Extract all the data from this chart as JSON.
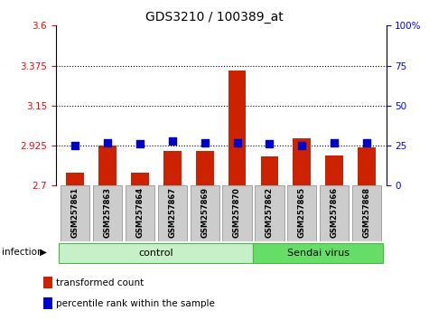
{
  "title": "GDS3210 / 100389_at",
  "samples": [
    "GSM257861",
    "GSM257863",
    "GSM257864",
    "GSM257867",
    "GSM257869",
    "GSM257870",
    "GSM257862",
    "GSM257865",
    "GSM257866",
    "GSM257868"
  ],
  "transformed_count": [
    2.775,
    2.925,
    2.775,
    2.895,
    2.895,
    3.345,
    2.865,
    2.965,
    2.87,
    2.915
  ],
  "percentile_rank": [
    25,
    27,
    26,
    28,
    27,
    27,
    26,
    25,
    27,
    27
  ],
  "groups": [
    {
      "label": "control",
      "start": 0,
      "end": 6,
      "color": "#c8f0c8",
      "edge_color": "#44bb44"
    },
    {
      "label": "Sendai virus",
      "start": 6,
      "end": 10,
      "color": "#66dd66",
      "edge_color": "#44bb44"
    }
  ],
  "ylim_left": [
    2.7,
    3.6
  ],
  "ylim_right": [
    0,
    100
  ],
  "yticks_left": [
    2.7,
    2.925,
    3.15,
    3.375,
    3.6
  ],
  "ytick_labels_left": [
    "2.7",
    "2.925",
    "3.15",
    "3.375",
    "3.6"
  ],
  "yticks_right": [
    0,
    25,
    50,
    75,
    100
  ],
  "ytick_labels_right": [
    "0",
    "25",
    "50",
    "75",
    "100%"
  ],
  "hlines": [
    2.925,
    3.15,
    3.375
  ],
  "bar_color": "#cc2200",
  "dot_color": "#0000cc",
  "bar_width": 0.55,
  "dot_size": 35,
  "infection_label": "infection",
  "arrow": "▶",
  "legend_items": [
    {
      "label": "transformed count",
      "color": "#cc2200"
    },
    {
      "label": "percentile rank within the sample",
      "color": "#0000cc"
    }
  ],
  "background_color": "#ffffff",
  "sample_box_color": "#cccccc",
  "sample_box_edge": "#888888"
}
